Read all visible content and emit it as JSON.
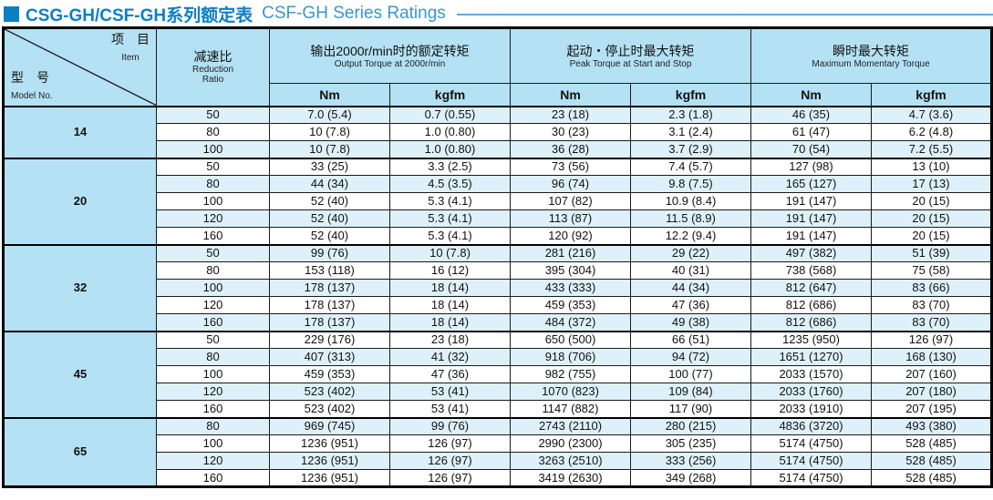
{
  "title": {
    "cn": "CSG-GH/CSF-GH系列额定表",
    "en": "CSF-GH Series Ratings"
  },
  "colors": {
    "accent_blue": "#0d7fc3",
    "title_en_blue": "#3a96ce",
    "rule_blue": "#5fabda",
    "header_fill": "#b4e1f3",
    "stripe_fill": "#def1fb",
    "border_dark": "#1a1a1a"
  },
  "table": {
    "corner": {
      "item_cn": "项　目",
      "item_en": "Item",
      "model_cn": "型　号",
      "model_en": "Model No."
    },
    "reduction_header": {
      "cn": "减速比",
      "en_line1": "Reduction",
      "en_line2": "Ratio"
    },
    "group_headers": [
      {
        "cn": "输出2000r/min时的额定转矩",
        "en": "Output Torque at 2000r/min"
      },
      {
        "cn": "起动・停止时最大转矩",
        "en": "Peak Torque at Start and Stop"
      },
      {
        "cn": "瞬时最大转矩",
        "en": "Maximum Momentary Torque"
      }
    ],
    "unit_headers": [
      "Nm",
      "kgfm",
      "Nm",
      "kgfm",
      "Nm",
      "kgfm"
    ],
    "model_groups": [
      {
        "model": "14",
        "rows": [
          {
            "ratio": "50",
            "cells": [
              "7.0 (5.4)",
              "0.7 (0.55)",
              "23 (18)",
              "2.3 (1.8)",
              "46 (35)",
              "4.7 (3.6)"
            ]
          },
          {
            "ratio": "80",
            "cells": [
              "10 (7.8)",
              "1.0 (0.80)",
              "30 (23)",
              "3.1 (2.4)",
              "61 (47)",
              "6.2 (4.8)"
            ]
          },
          {
            "ratio": "100",
            "cells": [
              "10 (7.8)",
              "1.0 (0.80)",
              "36 (28)",
              "3.7 (2.9)",
              "70 (54)",
              "7.2 (5.5)"
            ]
          }
        ]
      },
      {
        "model": "20",
        "rows": [
          {
            "ratio": "50",
            "cells": [
              "33 (25)",
              "3.3 (2.5)",
              "73 (56)",
              "7.4 (5.7)",
              "127 (98)",
              "13 (10)"
            ]
          },
          {
            "ratio": "80",
            "cells": [
              "44 (34)",
              "4.5 (3.5)",
              "96 (74)",
              "9.8 (7.5)",
              "165 (127)",
              "17 (13)"
            ]
          },
          {
            "ratio": "100",
            "cells": [
              "52 (40)",
              "5.3 (4.1)",
              "107 (82)",
              "10.9 (8.4)",
              "191 (147)",
              "20 (15)"
            ]
          },
          {
            "ratio": "120",
            "cells": [
              "52 (40)",
              "5.3 (4.1)",
              "113 (87)",
              "11.5 (8.9)",
              "191 (147)",
              "20 (15)"
            ]
          },
          {
            "ratio": "160",
            "cells": [
              "52 (40)",
              "5.3 (4.1)",
              "120 (92)",
              "12.2 (9.4)",
              "191 (147)",
              "20 (15)"
            ]
          }
        ]
      },
      {
        "model": "32",
        "rows": [
          {
            "ratio": "50",
            "cells": [
              "99 (76)",
              "10 (7.8)",
              "281 (216)",
              "29 (22)",
              "497 (382)",
              "51 (39)"
            ]
          },
          {
            "ratio": "80",
            "cells": [
              "153 (118)",
              "16 (12)",
              "395 (304)",
              "40 (31)",
              "738 (568)",
              "75 (58)"
            ]
          },
          {
            "ratio": "100",
            "cells": [
              "178 (137)",
              "18 (14)",
              "433 (333)",
              "44 (34)",
              "812 (647)",
              "83 (66)"
            ]
          },
          {
            "ratio": "120",
            "cells": [
              "178 (137)",
              "18 (14)",
              "459 (353)",
              "47 (36)",
              "812 (686)",
              "83 (70)"
            ]
          },
          {
            "ratio": "160",
            "cells": [
              "178 (137)",
              "18 (14)",
              "484 (372)",
              "49 (38)",
              "812 (686)",
              "83 (70)"
            ]
          }
        ]
      },
      {
        "model": "45",
        "rows": [
          {
            "ratio": "50",
            "cells": [
              "229 (176)",
              "23 (18)",
              "650 (500)",
              "66 (51)",
              "1235 (950)",
              "126 (97)"
            ]
          },
          {
            "ratio": "80",
            "cells": [
              "407 (313)",
              "41 (32)",
              "918 (706)",
              "94 (72)",
              "1651 (1270)",
              "168 (130)"
            ]
          },
          {
            "ratio": "100",
            "cells": [
              "459 (353)",
              "47 (36)",
              "982 (755)",
              "100 (77)",
              "2033 (1570)",
              "207 (160)"
            ]
          },
          {
            "ratio": "120",
            "cells": [
              "523 (402)",
              "53 (41)",
              "1070 (823)",
              "109 (84)",
              "2033 (1760)",
              "207 (180)"
            ]
          },
          {
            "ratio": "160",
            "cells": [
              "523 (402)",
              "53 (41)",
              "1147 (882)",
              "117 (90)",
              "2033 (1910)",
              "207 (195)"
            ]
          }
        ]
      },
      {
        "model": "65",
        "rows": [
          {
            "ratio": "80",
            "cells": [
              "969 (745)",
              "99 (76)",
              "2743 (2110)",
              "280 (215)",
              "4836 (3720)",
              "493 (380)"
            ]
          },
          {
            "ratio": "100",
            "cells": [
              "1236 (951)",
              "126 (97)",
              "2990 (2300)",
              "305 (235)",
              "5174 (4750)",
              "528 (485)"
            ]
          },
          {
            "ratio": "120",
            "cells": [
              "1236 (951)",
              "126 (97)",
              "3263 (2510)",
              "333 (256)",
              "5174 (4750)",
              "528 (485)"
            ]
          },
          {
            "ratio": "160",
            "cells": [
              "1236 (951)",
              "126 (97)",
              "3419 (2630)",
              "349 (268)",
              "5174 (4750)",
              "528 (485)"
            ]
          }
        ]
      }
    ]
  }
}
